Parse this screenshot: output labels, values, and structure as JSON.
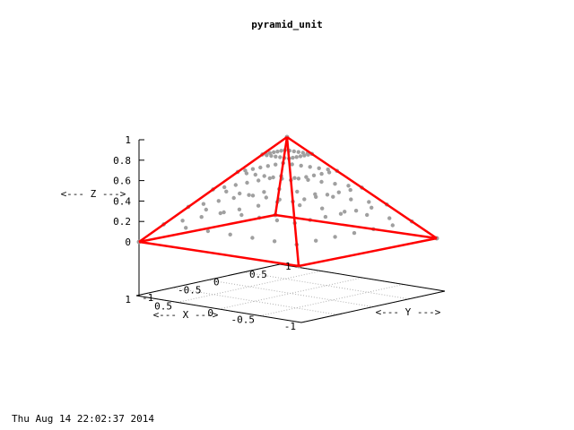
{
  "chart_data": {
    "type": "scatter",
    "title": "pyramid_unit",
    "xlabel": "<--- X --->",
    "ylabel": "<--- Y --->",
    "zlabel": "<--- Z --->",
    "xticks": [
      "-1",
      "-0.5",
      "0",
      "0.5",
      "1"
    ],
    "yticks": [
      "-1",
      "-0.5",
      "0",
      "0.5",
      "1"
    ],
    "zticks": [
      "0",
      "0.2",
      "0.4",
      "0.6",
      "0.8",
      "1"
    ],
    "xlim": [
      -1,
      1
    ],
    "ylim": [
      -1,
      1
    ],
    "zlim": [
      0,
      1
    ],
    "grid": true,
    "colors": {
      "edges": "#ff0000",
      "points": "#a0a0a0",
      "axes": "#000000",
      "grid": "#b0b0b0"
    },
    "apex": [
      0,
      0,
      1
    ],
    "base": [
      [
        -1,
        -1,
        0
      ],
      [
        1,
        -1,
        0
      ],
      [
        1,
        1,
        0
      ],
      [
        -1,
        1,
        0
      ]
    ],
    "points_per_edge": 6
  },
  "timestamp": "Thu Aug 14 22:02:37 2014"
}
